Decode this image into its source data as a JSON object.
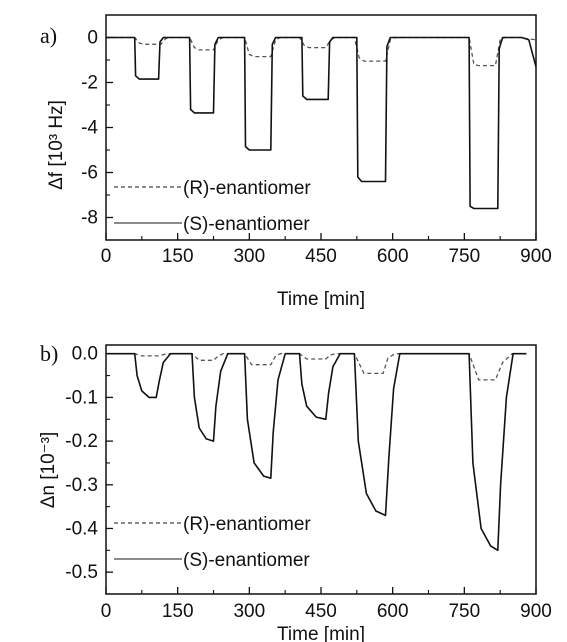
{
  "chart_data": [
    {
      "type": "line",
      "panel_label": "a)",
      "xlabel": "Time [min]",
      "ylabel": "Δf [10³ Hz]",
      "xlim": [
        0,
        900
      ],
      "ylim": [
        -9,
        1
      ],
      "xticks": [
        0,
        150,
        300,
        450,
        600,
        750,
        900
      ],
      "yticks": [
        0,
        -2,
        -4,
        -6,
        -8
      ],
      "xtick_labels": [
        "0",
        "150",
        "300",
        "450",
        "600",
        "750",
        "900"
      ],
      "ytick_labels": [
        "0",
        "-2",
        "-4",
        "-6",
        "-8"
      ],
      "legend": {
        "placement": "bottom-left",
        "entries": [
          "(R)-enantiomer",
          "(S)-enantiomer"
        ]
      },
      "series": [
        {
          "name": "(R)-enantiomer",
          "style": "dashed",
          "x": [
            0,
            60,
            70,
            80,
            115,
            125,
            135,
            175,
            185,
            195,
            225,
            235,
            245,
            290,
            300,
            310,
            345,
            355,
            365,
            405,
            415,
            425,
            460,
            470,
            480,
            520,
            530,
            540,
            585,
            595,
            605,
            760,
            770,
            780,
            815,
            825,
            835,
            870,
            880,
            900
          ],
          "y": [
            0,
            0,
            -0.25,
            -0.3,
            -0.3,
            -0.05,
            0,
            0,
            -0.45,
            -0.55,
            -0.55,
            -0.1,
            0,
            0,
            -0.75,
            -0.85,
            -0.85,
            -0.1,
            0,
            0,
            -0.35,
            -0.45,
            -0.45,
            -0.1,
            0,
            0,
            -0.9,
            -1.05,
            -1.05,
            -0.1,
            0,
            0,
            -1.2,
            -1.25,
            -1.25,
            -0.1,
            0,
            0,
            -0.05,
            -0.1
          ]
        },
        {
          "name": "(S)-enantiomer",
          "style": "solid",
          "x": [
            0,
            60,
            62,
            70,
            110,
            113,
            120,
            175,
            177,
            185,
            225,
            228,
            235,
            290,
            292,
            300,
            345,
            348,
            355,
            410,
            412,
            420,
            465,
            468,
            475,
            525,
            527,
            535,
            585,
            588,
            595,
            760,
            762,
            770,
            820,
            823,
            830,
            870,
            885,
            900
          ],
          "y": [
            0,
            0,
            -1.7,
            -1.85,
            -1.85,
            -0.2,
            0,
            0,
            -3.2,
            -3.35,
            -3.35,
            -0.3,
            0,
            0,
            -4.85,
            -5.0,
            -5.0,
            -0.3,
            0,
            0,
            -2.6,
            -2.75,
            -2.75,
            -0.2,
            0,
            0,
            -6.2,
            -6.4,
            -6.4,
            -0.4,
            0,
            0,
            -7.5,
            -7.6,
            -7.6,
            -0.5,
            0,
            0,
            -0.1,
            -1.3
          ]
        }
      ]
    },
    {
      "type": "line",
      "panel_label": "b)",
      "xlabel": "Time [min]",
      "ylabel": "Δn [10⁻³]",
      "xlim": [
        0,
        900
      ],
      "ylim": [
        -0.55,
        0.02
      ],
      "xticks": [
        0,
        150,
        300,
        450,
        600,
        750,
        900
      ],
      "yticks": [
        0.0,
        -0.1,
        -0.2,
        -0.3,
        -0.4,
        -0.5
      ],
      "xtick_labels": [
        "0",
        "150",
        "300",
        "450",
        "600",
        "750",
        "900"
      ],
      "ytick_labels": [
        "0.0",
        "-0.1",
        "-0.2",
        "-0.3",
        "-0.4",
        "-0.5"
      ],
      "legend": {
        "placement": "bottom-left",
        "entries": [
          "(R)-enantiomer",
          "(S)-enantiomer"
        ]
      },
      "series": [
        {
          "name": "(R)-enantiomer",
          "style": "dashed",
          "x": [
            0,
            60,
            75,
            110,
            120,
            135,
            180,
            195,
            225,
            235,
            245,
            290,
            305,
            345,
            355,
            365,
            405,
            420,
            460,
            470,
            480,
            520,
            540,
            580,
            590,
            605,
            760,
            780,
            815,
            830,
            850,
            880
          ],
          "y": [
            0,
            0,
            -0.005,
            -0.005,
            -0.002,
            0,
            0,
            -0.015,
            -0.015,
            -0.005,
            0,
            0,
            -0.025,
            -0.025,
            -0.005,
            0,
            0,
            -0.012,
            -0.012,
            -0.003,
            0,
            0,
            -0.045,
            -0.045,
            -0.01,
            0,
            0,
            -0.06,
            -0.06,
            -0.02,
            0,
            0
          ]
        },
        {
          "name": "(S)-enantiomer",
          "style": "solid",
          "x": [
            0,
            60,
            65,
            75,
            90,
            105,
            112,
            120,
            135,
            180,
            185,
            195,
            210,
            225,
            230,
            240,
            255,
            290,
            296,
            310,
            330,
            345,
            350,
            360,
            375,
            405,
            410,
            420,
            440,
            460,
            466,
            475,
            490,
            520,
            528,
            545,
            565,
            585,
            592,
            602,
            615,
            760,
            768,
            785,
            805,
            820,
            826,
            838,
            852,
            880
          ],
          "y": [
            0,
            0,
            -0.05,
            -0.085,
            -0.1,
            -0.1,
            -0.06,
            -0.02,
            0,
            0,
            -0.1,
            -0.17,
            -0.195,
            -0.2,
            -0.12,
            -0.04,
            0,
            0,
            -0.15,
            -0.25,
            -0.28,
            -0.285,
            -0.18,
            -0.06,
            0,
            0,
            -0.07,
            -0.12,
            -0.145,
            -0.15,
            -0.09,
            -0.03,
            0,
            0,
            -0.2,
            -0.32,
            -0.36,
            -0.37,
            -0.24,
            -0.08,
            0,
            0,
            -0.25,
            -0.4,
            -0.44,
            -0.45,
            -0.3,
            -0.1,
            0,
            0
          ]
        }
      ]
    }
  ]
}
